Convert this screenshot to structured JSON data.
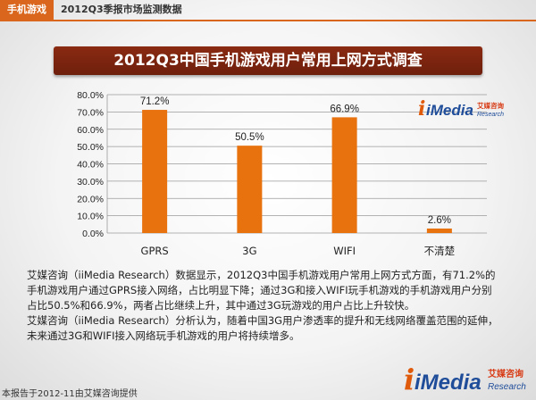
{
  "header": {
    "tag": "手机游戏",
    "subtitle": "2012Q3季报市场监测数据"
  },
  "chart_data": {
    "type": "bar",
    "title": "2012Q3中国手机游戏用户常用上网方式调查",
    "categories": [
      "GPRS",
      "3G",
      "WIFI",
      "不清楚"
    ],
    "values": [
      71.2,
      50.5,
      66.9,
      2.6
    ],
    "data_labels": [
      "71.2%",
      "50.5%",
      "66.9%",
      "2.6%"
    ],
    "ylim": [
      0,
      80
    ],
    "yticks": [
      "0.0%",
      "10.0%",
      "20.0%",
      "30.0%",
      "40.0%",
      "50.0%",
      "60.0%",
      "70.0%",
      "80.0%"
    ],
    "grid": true,
    "bar_color": "#e8720e"
  },
  "logo": {
    "i": "i",
    "media": "iMedia",
    "cn": "艾媒咨询",
    "research": "Research"
  },
  "description": {
    "lines": [
      "艾媒咨询（iiMedia Research）数据显示，2012Q3中国手机游戏用户常用上网方式方面，有71.2%的",
      "手机游戏用户通过GPRS接入网络，占比明显下降；通过3G和接入WIFI玩手机游戏的手机游戏用户分别",
      "占比50.5%和66.9%，两者占比继续上升，其中通过3G玩游戏的用户占比上升较快。",
      "艾媒咨询（iiMedia Research）分析认为，随着中国3G用户渗透率的提升和无线网络覆盖范围的延伸，",
      "未来通过3G和WIFI接入网络玩手机游戏的用户将持续增多。"
    ]
  },
  "footer": {
    "text": "本报告于2012-11由艾媒咨询提供"
  }
}
